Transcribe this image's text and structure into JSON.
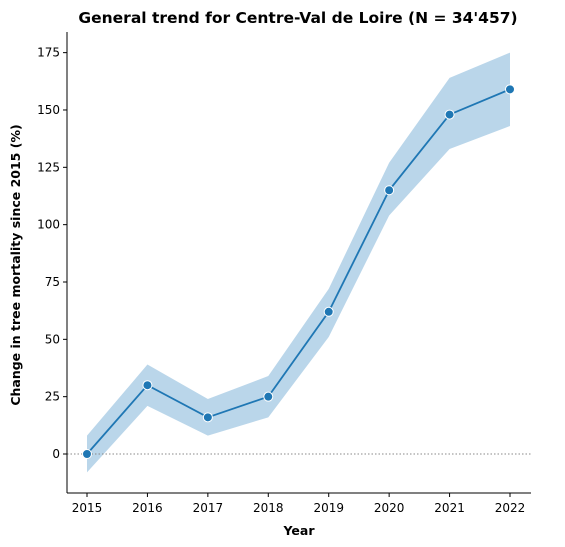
{
  "chart_data": {
    "type": "line",
    "title": "General trend for Centre-Val de Loire  (N = 34'457)",
    "xlabel": "Year",
    "ylabel": "Change in tree mortality since 2015 (%)",
    "x": [
      "2015",
      "2016",
      "2017",
      "2018",
      "2019",
      "2020",
      "2021",
      "2022"
    ],
    "series": [
      {
        "values": [
          0,
          30,
          16,
          25,
          62,
          115,
          148,
          159
        ],
        "lower": [
          -8,
          21,
          8,
          16,
          51,
          104,
          133,
          143
        ],
        "upper": [
          8,
          39,
          24,
          34,
          72,
          127,
          164,
          175
        ]
      }
    ],
    "yticks": [
      0,
      25,
      50,
      75,
      100,
      125,
      150,
      175
    ],
    "ylim": [
      -17,
      184
    ],
    "reference_line": 0,
    "grid": false,
    "legend": "none",
    "colors": {
      "line": "#1f77b4",
      "band": "#bad6ea",
      "marker_edge": "#ffffff",
      "reference": "#888888"
    }
  }
}
